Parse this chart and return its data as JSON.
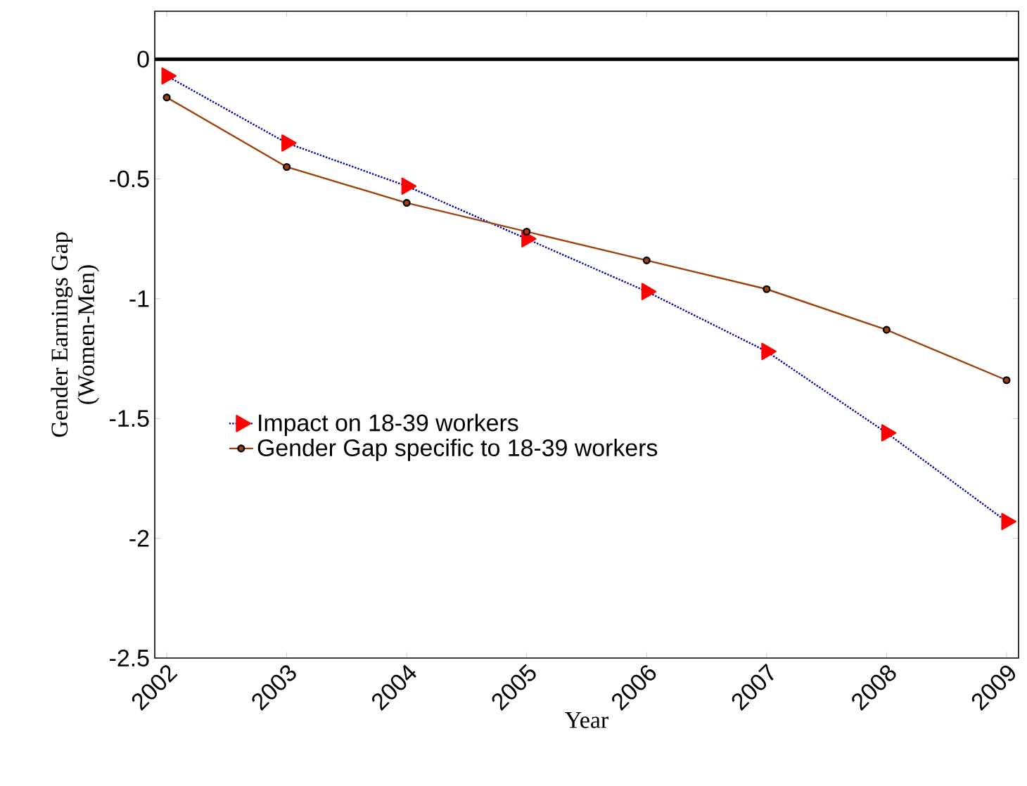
{
  "chart_data": {
    "type": "line",
    "xlabel": "Year",
    "ylabel": [
      "Gender Earnings Gap",
      "(Women-Men)"
    ],
    "x": [
      2002,
      2003,
      2004,
      2005,
      2006,
      2007,
      2008,
      2009
    ],
    "xlim": [
      2001.9,
      2009.1
    ],
    "xticks": [
      2002,
      2003,
      2004,
      2005,
      2006,
      2007,
      2008,
      2009
    ],
    "ylim": [
      -2.5,
      0.2
    ],
    "yticks": [
      -2.5,
      -2,
      -1.5,
      -1,
      -0.5,
      0
    ],
    "series": [
      {
        "name": "Impact on 18-39 workers",
        "color": "#ff0000",
        "marker": "triangle",
        "line_style": "dotted",
        "values": [
          -0.07,
          -0.35,
          -0.53,
          -0.75,
          -0.97,
          -1.22,
          -1.56,
          -1.93
        ]
      },
      {
        "name": "Gender Gap specific to 18-39 workers",
        "color": "#a0400a",
        "marker": "circle",
        "line_style": "solid",
        "values": [
          -0.16,
          -0.45,
          -0.6,
          -0.72,
          -0.84,
          -0.96,
          -1.13,
          -1.34
        ]
      }
    ],
    "ref_lines": [
      {
        "axis": "y",
        "value": 0,
        "color": "#000000"
      }
    ],
    "grid": false,
    "legend": "bottom left"
  }
}
